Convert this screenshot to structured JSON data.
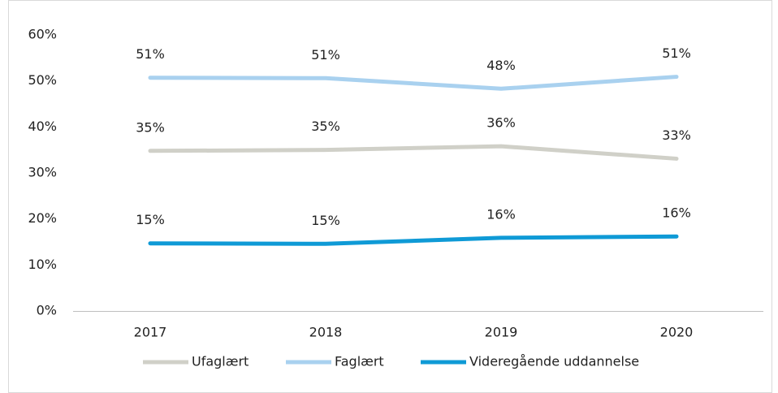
{
  "chart_data": {
    "type": "line",
    "categories": [
      "2017",
      "2018",
      "2019",
      "2020"
    ],
    "ylim": [
      0,
      60
    ],
    "yticks": [
      {
        "value": 0,
        "label": "0%"
      },
      {
        "value": 10,
        "label": "10%"
      },
      {
        "value": 20,
        "label": "20%"
      },
      {
        "value": 30,
        "label": "30%"
      },
      {
        "value": 40,
        "label": "40%"
      },
      {
        "value": 50,
        "label": "50%"
      },
      {
        "value": 60,
        "label": "60%"
      }
    ],
    "grid": false,
    "legend": "bottom",
    "series": [
      {
        "name": "Ufaglært",
        "color": "#d0d0c8",
        "values": [
          34.8,
          35.0,
          35.8,
          33.1
        ],
        "value_labels": [
          "35%",
          "35%",
          "36%",
          "33%"
        ]
      },
      {
        "name": "Faglært",
        "color": "#a9d1ef",
        "values": [
          50.7,
          50.6,
          48.3,
          50.9
        ],
        "value_labels": [
          "51%",
          "51%",
          "48%",
          "51%"
        ]
      },
      {
        "name": "Videregående uddannelse",
        "color": "#0f9ad6",
        "values": [
          14.7,
          14.6,
          15.9,
          16.2
        ],
        "value_labels": [
          "15%",
          "15%",
          "16%",
          "16%"
        ]
      }
    ]
  }
}
